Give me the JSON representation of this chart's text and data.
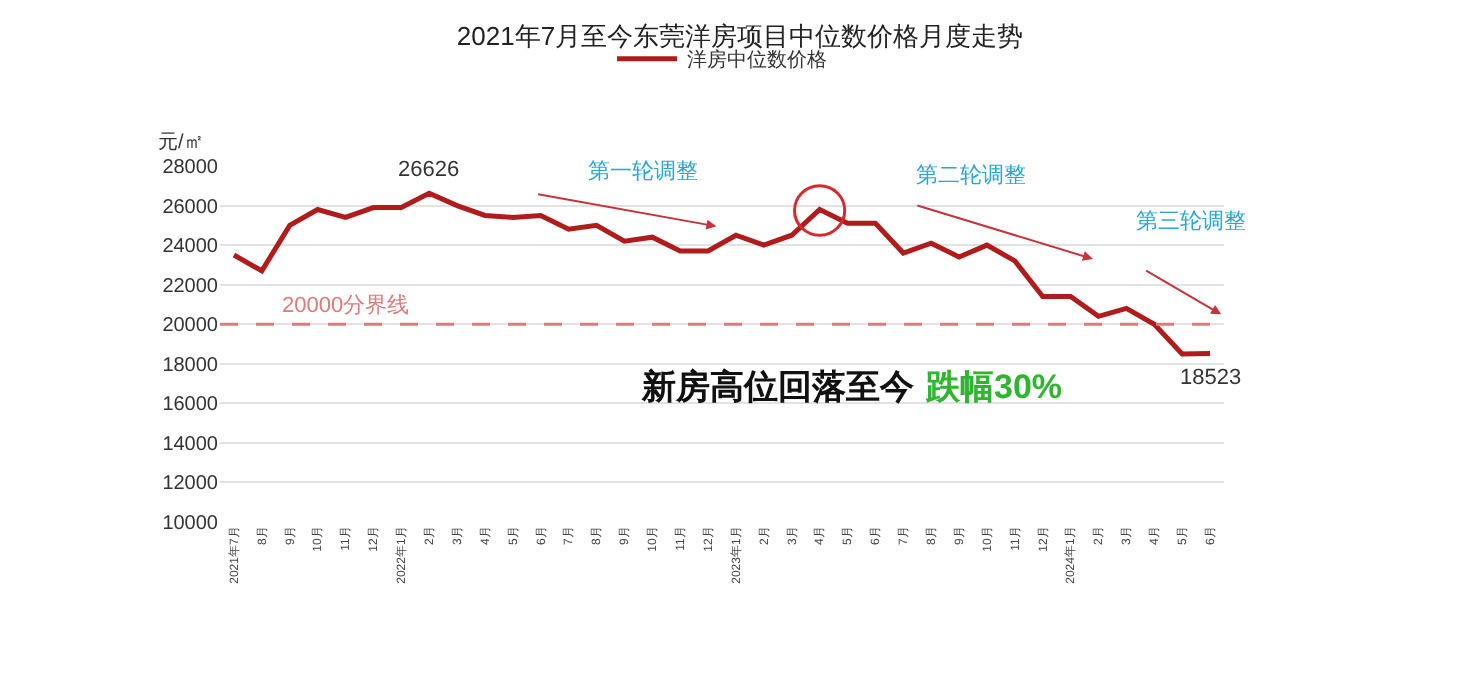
{
  "chart_data": {
    "type": "line",
    "title": "2021年7月至今东莞洋房项目中位数价格月度走势",
    "ylabel": "元/㎡",
    "categories": [
      "2021年7月",
      "8月",
      "9月",
      "10月",
      "11月",
      "12月",
      "2022年1月",
      "2月",
      "3月",
      "4月",
      "5月",
      "6月",
      "7月",
      "8月",
      "9月",
      "10月",
      "11月",
      "12月",
      "2023年1月",
      "2月",
      "3月",
      "4月",
      "5月",
      "6月",
      "7月",
      "8月",
      "9月",
      "10月",
      "11月",
      "12月",
      "2024年1月",
      "2月",
      "3月",
      "4月",
      "5月",
      "6月"
    ],
    "series": [
      {
        "name": "洋房中位数价格",
        "color": "#b01c1c",
        "values": [
          23500,
          22700,
          25000,
          25800,
          25400,
          25900,
          25900,
          26626,
          26000,
          25500,
          25400,
          25500,
          24800,
          25000,
          24200,
          24400,
          23700,
          23700,
          24500,
          24000,
          24500,
          25800,
          25100,
          25100,
          23600,
          24100,
          23400,
          24000,
          23200,
          21400,
          21400,
          20400,
          20800,
          20000,
          18500,
          18523
        ],
        "value_labels": [
          null,
          null,
          null,
          null,
          null,
          null,
          null,
          "26626",
          null,
          null,
          null,
          null,
          null,
          null,
          null,
          null,
          null,
          null,
          null,
          null,
          null,
          null,
          null,
          null,
          null,
          null,
          null,
          null,
          null,
          null,
          null,
          null,
          null,
          null,
          null,
          "18523"
        ]
      }
    ],
    "ylim": [
      10000,
      28000
    ],
    "yticks": [
      10000,
      12000,
      14000,
      16000,
      18000,
      20000,
      22000,
      24000,
      26000,
      28000
    ],
    "grid": "y",
    "legend": "top",
    "marker": "none",
    "line_style": "solid",
    "ref_lines": [
      {
        "axis": "y",
        "value": 20000,
        "label": "20000分界线",
        "color": "#e07a7a",
        "line_style": "dashed"
      }
    ],
    "annotations": [
      "第一轮调整",
      "第二轮调整",
      "第三轮调整",
      "新房高位回落至今",
      "跌幅30%"
    ]
  }
}
